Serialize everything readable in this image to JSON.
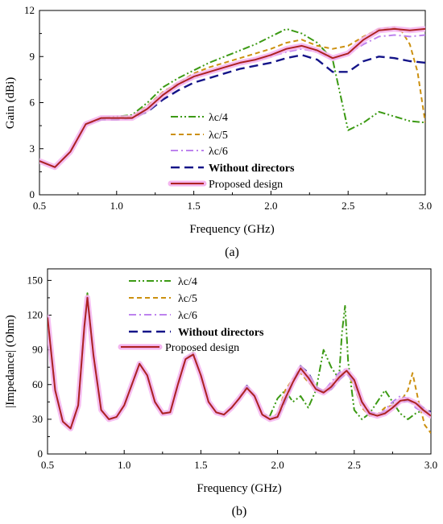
{
  "colors": {
    "lc4": "#3c9a14",
    "lc5": "#cc9010",
    "lc6": "#bd83ee",
    "without": "#141488",
    "proposed": "#ad2222",
    "proposed_glow": "#f4b4ee"
  },
  "chart_data": [
    {
      "type": "line",
      "caption": "(a)",
      "xlabel": "Frequency (GHz)",
      "ylabel": "Gain (dBi)",
      "xlim": [
        0.5,
        3.0
      ],
      "ylim": [
        0,
        12
      ],
      "xticks": [
        0.5,
        1.0,
        1.5,
        2.0,
        2.5,
        3.0
      ],
      "xtick_labels": [
        "0.5",
        "1.0",
        "1.5",
        "2.0",
        "2.5",
        "3.0"
      ],
      "yticks": [
        0,
        3,
        6,
        9,
        12
      ],
      "ytick_labels": [
        "0",
        "3",
        "6",
        "9",
        "12"
      ],
      "grid": false,
      "legend_position": "bottom-right",
      "series": [
        {
          "key": "lc4",
          "name": "λc/4",
          "style": "dashdotdot",
          "x": [
            0.5,
            0.6,
            0.7,
            0.8,
            0.9,
            1.0,
            1.1,
            1.2,
            1.3,
            1.4,
            1.5,
            1.6,
            1.7,
            1.8,
            1.9,
            2.0,
            2.1,
            2.2,
            2.3,
            2.4,
            2.5,
            2.6,
            2.7,
            2.8,
            2.9,
            3.0
          ],
          "y": [
            2.2,
            1.8,
            2.8,
            4.6,
            5.0,
            5.1,
            5.2,
            6.0,
            7.0,
            7.6,
            8.1,
            8.6,
            9.0,
            9.4,
            9.8,
            10.3,
            10.8,
            10.5,
            9.9,
            8.8,
            4.2,
            4.7,
            5.4,
            5.1,
            4.8,
            4.7
          ]
        },
        {
          "key": "lc5",
          "name": "λc/5",
          "style": "dash",
          "x": [
            0.5,
            0.6,
            0.7,
            0.8,
            0.9,
            1.0,
            1.1,
            1.2,
            1.3,
            1.4,
            1.5,
            1.6,
            1.7,
            1.8,
            1.9,
            2.0,
            2.1,
            2.2,
            2.3,
            2.4,
            2.5,
            2.6,
            2.7,
            2.8,
            2.85,
            2.9,
            2.95,
            3.0
          ],
          "y": [
            2.2,
            1.8,
            2.8,
            4.6,
            5.0,
            5.0,
            5.1,
            5.8,
            6.7,
            7.3,
            7.9,
            8.3,
            8.6,
            8.9,
            9.2,
            9.5,
            9.9,
            10.1,
            9.7,
            9.5,
            9.7,
            10.3,
            10.8,
            10.9,
            10.6,
            9.8,
            8.0,
            4.7
          ]
        },
        {
          "key": "lc6",
          "name": "λc/6",
          "style": "dashdot",
          "x": [
            0.5,
            0.6,
            0.7,
            0.8,
            0.9,
            1.0,
            1.1,
            1.2,
            1.3,
            1.4,
            1.5,
            1.6,
            1.7,
            1.8,
            1.9,
            2.0,
            2.1,
            2.2,
            2.3,
            2.4,
            2.5,
            2.6,
            2.7,
            2.8,
            2.9,
            3.0
          ],
          "y": [
            2.2,
            1.8,
            2.8,
            4.6,
            4.9,
            4.9,
            5.0,
            5.6,
            6.5,
            7.1,
            7.6,
            8.0,
            8.3,
            8.6,
            8.8,
            9.0,
            9.3,
            9.5,
            9.3,
            8.8,
            9.2,
            9.8,
            10.3,
            10.4,
            10.3,
            10.4
          ]
        },
        {
          "key": "without",
          "name": "Without directors",
          "style": "longdash",
          "x": [
            0.5,
            0.6,
            0.7,
            0.8,
            0.9,
            1.0,
            1.1,
            1.2,
            1.3,
            1.4,
            1.5,
            1.6,
            1.7,
            1.8,
            1.9,
            2.0,
            2.1,
            2.2,
            2.3,
            2.4,
            2.5,
            2.6,
            2.7,
            2.8,
            2.9,
            3.0
          ],
          "y": [
            2.2,
            1.8,
            2.8,
            4.6,
            4.9,
            4.9,
            5.0,
            5.4,
            6.2,
            6.8,
            7.3,
            7.6,
            7.9,
            8.2,
            8.4,
            8.6,
            8.9,
            9.1,
            8.8,
            8.0,
            8.0,
            8.7,
            9.0,
            8.9,
            8.7,
            8.6
          ]
        },
        {
          "key": "proposed",
          "name": "Proposed design",
          "style": "solid",
          "x": [
            0.5,
            0.6,
            0.7,
            0.8,
            0.9,
            1.0,
            1.1,
            1.2,
            1.3,
            1.4,
            1.5,
            1.6,
            1.7,
            1.8,
            1.9,
            2.0,
            2.1,
            2.2,
            2.3,
            2.4,
            2.5,
            2.6,
            2.7,
            2.8,
            2.9,
            3.0
          ],
          "y": [
            2.2,
            1.8,
            2.8,
            4.6,
            5.0,
            5.0,
            5.0,
            5.6,
            6.5,
            7.2,
            7.7,
            8.0,
            8.3,
            8.6,
            8.8,
            9.1,
            9.5,
            9.7,
            9.4,
            8.9,
            9.2,
            10.1,
            10.7,
            10.8,
            10.7,
            10.8
          ]
        }
      ]
    },
    {
      "type": "line",
      "caption": "(b)",
      "xlabel": "Frequency (GHz)",
      "ylabel": "|Impedance| (Ohm)",
      "xlim": [
        0.5,
        3.0
      ],
      "ylim": [
        0,
        160
      ],
      "xticks": [
        0.5,
        1.0,
        1.5,
        2.0,
        2.5,
        3.0
      ],
      "xtick_labels": [
        "0.5",
        "1.0",
        "1.5",
        "2.0",
        "2.5",
        "3.0"
      ],
      "yticks": [
        0,
        30,
        60,
        90,
        120,
        150
      ],
      "ytick_labels": [
        "0",
        "30",
        "60",
        "90",
        "120",
        "150"
      ],
      "grid": false,
      "legend_position": "top-right",
      "series": [
        {
          "key": "lc4",
          "name": "λc/4",
          "style": "dashdotdot",
          "x": [
            0.5,
            0.55,
            0.6,
            0.65,
            0.7,
            0.74,
            0.76,
            0.8,
            0.85,
            0.9,
            0.95,
            1.0,
            1.05,
            1.1,
            1.15,
            1.2,
            1.25,
            1.3,
            1.35,
            1.4,
            1.45,
            1.5,
            1.55,
            1.6,
            1.65,
            1.7,
            1.75,
            1.8,
            1.85,
            1.9,
            1.95,
            2.0,
            2.05,
            2.1,
            2.15,
            2.2,
            2.25,
            2.3,
            2.35,
            2.4,
            2.42,
            2.44,
            2.46,
            2.5,
            2.55,
            2.6,
            2.65,
            2.7,
            2.75,
            2.8,
            2.85,
            2.9,
            2.95,
            3.0
          ],
          "y": [
            118,
            55,
            28,
            22,
            42,
            110,
            139,
            85,
            38,
            30,
            32,
            42,
            60,
            78,
            68,
            45,
            35,
            36,
            60,
            82,
            88,
            68,
            45,
            36,
            34,
            40,
            48,
            58,
            50,
            34,
            33,
            48,
            55,
            45,
            50,
            40,
            55,
            90,
            75,
            65,
            105,
            128,
            80,
            38,
            30,
            35,
            45,
            55,
            45,
            35,
            30,
            35,
            38,
            35
          ]
        },
        {
          "key": "lc5",
          "name": "λc/5",
          "style": "dash",
          "x": [
            0.5,
            0.55,
            0.6,
            0.65,
            0.7,
            0.74,
            0.76,
            0.8,
            0.85,
            0.9,
            0.95,
            1.0,
            1.05,
            1.1,
            1.15,
            1.2,
            1.25,
            1.3,
            1.35,
            1.4,
            1.45,
            1.5,
            1.55,
            1.6,
            1.65,
            1.7,
            1.75,
            1.8,
            1.85,
            1.9,
            1.95,
            2.0,
            2.05,
            2.1,
            2.15,
            2.2,
            2.25,
            2.3,
            2.35,
            2.4,
            2.45,
            2.5,
            2.55,
            2.6,
            2.65,
            2.7,
            2.75,
            2.8,
            2.85,
            2.88,
            2.92,
            2.96,
            3.0
          ],
          "y": [
            118,
            55,
            28,
            22,
            42,
            110,
            137,
            85,
            38,
            30,
            32,
            42,
            60,
            78,
            68,
            45,
            35,
            36,
            60,
            82,
            86,
            68,
            45,
            36,
            34,
            40,
            48,
            57,
            50,
            34,
            30,
            35,
            55,
            65,
            70,
            62,
            56,
            55,
            60,
            68,
            72,
            58,
            40,
            33,
            34,
            40,
            42,
            45,
            55,
            70,
            45,
            25,
            18
          ]
        },
        {
          "key": "lc6",
          "name": "λc/6",
          "style": "dashdot",
          "x": [
            0.5,
            0.55,
            0.6,
            0.65,
            0.7,
            0.74,
            0.76,
            0.8,
            0.85,
            0.9,
            0.95,
            1.0,
            1.05,
            1.1,
            1.15,
            1.2,
            1.25,
            1.3,
            1.35,
            1.4,
            1.45,
            1.5,
            1.55,
            1.6,
            1.65,
            1.7,
            1.75,
            1.8,
            1.85,
            1.9,
            1.95,
            2.0,
            2.05,
            2.1,
            2.15,
            2.2,
            2.25,
            2.3,
            2.35,
            2.4,
            2.45,
            2.5,
            2.55,
            2.6,
            2.65,
            2.7,
            2.75,
            2.8,
            2.85,
            2.9,
            2.95,
            3.0
          ],
          "y": [
            118,
            55,
            28,
            22,
            42,
            110,
            136,
            85,
            38,
            30,
            32,
            42,
            60,
            78,
            68,
            45,
            35,
            36,
            60,
            82,
            86,
            68,
            45,
            36,
            34,
            40,
            48,
            57,
            50,
            34,
            30,
            34,
            50,
            62,
            72,
            65,
            56,
            54,
            62,
            70,
            74,
            60,
            42,
            34,
            33,
            38,
            45,
            50,
            48,
            40,
            36,
            33
          ]
        },
        {
          "key": "without",
          "name": "Without directors",
          "style": "longdash",
          "x": [
            0.5,
            0.55,
            0.6,
            0.65,
            0.7,
            0.74,
            0.76,
            0.8,
            0.85,
            0.9,
            0.95,
            1.0,
            1.05,
            1.1,
            1.15,
            1.2,
            1.25,
            1.3,
            1.35,
            1.4,
            1.45,
            1.5,
            1.55,
            1.6,
            1.65,
            1.7,
            1.75,
            1.8,
            1.85,
            1.9,
            1.95,
            2.0,
            2.05,
            2.1,
            2.15,
            2.2,
            2.25,
            2.3,
            2.35,
            2.4,
            2.45,
            2.5,
            2.55,
            2.6,
            2.65,
            2.7,
            2.75,
            2.8,
            2.85,
            2.9,
            2.95,
            3.0
          ],
          "y": [
            118,
            55,
            28,
            22,
            42,
            110,
            135,
            85,
            38,
            30,
            32,
            42,
            60,
            78,
            68,
            45,
            35,
            36,
            60,
            82,
            86,
            68,
            45,
            36,
            34,
            40,
            48,
            59,
            50,
            34,
            30,
            32,
            45,
            62,
            76,
            70,
            58,
            54,
            56,
            64,
            70,
            62,
            45,
            36,
            34,
            36,
            40,
            45,
            46,
            44,
            40,
            36
          ]
        },
        {
          "key": "proposed",
          "name": "Proposed design",
          "style": "solid",
          "x": [
            0.5,
            0.55,
            0.6,
            0.65,
            0.7,
            0.74,
            0.76,
            0.8,
            0.85,
            0.9,
            0.95,
            1.0,
            1.05,
            1.1,
            1.15,
            1.2,
            1.25,
            1.3,
            1.35,
            1.4,
            1.45,
            1.5,
            1.55,
            1.6,
            1.65,
            1.7,
            1.75,
            1.8,
            1.85,
            1.9,
            1.95,
            2.0,
            2.05,
            2.1,
            2.15,
            2.2,
            2.25,
            2.3,
            2.35,
            2.4,
            2.45,
            2.5,
            2.55,
            2.6,
            2.65,
            2.7,
            2.75,
            2.8,
            2.85,
            2.9,
            2.95,
            3.0
          ],
          "y": [
            118,
            55,
            28,
            22,
            42,
            110,
            135,
            85,
            38,
            30,
            32,
            42,
            60,
            78,
            68,
            45,
            35,
            36,
            60,
            82,
            86,
            68,
            45,
            36,
            34,
            40,
            48,
            57,
            50,
            34,
            30,
            32,
            48,
            62,
            74,
            66,
            56,
            53,
            58,
            66,
            72,
            64,
            45,
            35,
            33,
            35,
            40,
            46,
            47,
            44,
            38,
            33
          ]
        }
      ]
    }
  ]
}
